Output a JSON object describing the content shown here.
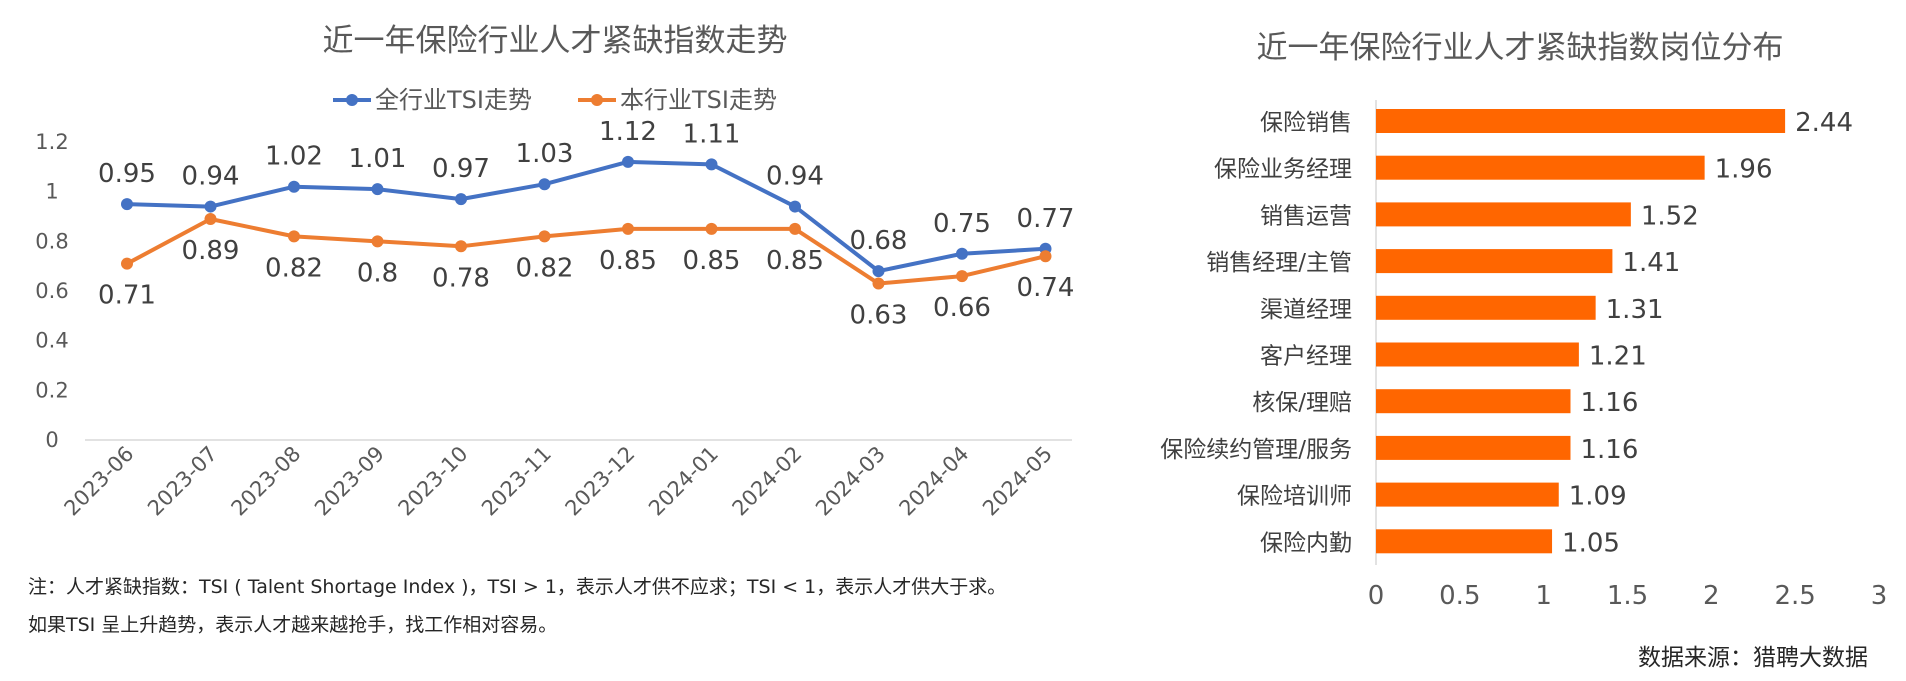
{
  "colors": {
    "blue": "#4472C4",
    "orange": "#ED7D31",
    "bar": "#FF6600",
    "axis": "#D9D9D9",
    "text": "#595959"
  },
  "chart_data": [
    {
      "type": "line",
      "title": "近一年保险行业人才紧缺指数走势",
      "categories": [
        "2023-06",
        "2023-07",
        "2023-08",
        "2023-09",
        "2023-10",
        "2023-11",
        "2023-12",
        "2024-01",
        "2024-02",
        "2024-03",
        "2024-04",
        "2024-05"
      ],
      "series": [
        {
          "name": "全行业TSI走势",
          "color": "#4472C4",
          "values": [
            0.95,
            0.94,
            1.02,
            1.01,
            0.97,
            1.03,
            1.12,
            1.11,
            0.94,
            0.68,
            0.75,
            0.77
          ],
          "labels": [
            "0.95",
            "0.94",
            "1.02",
            "1.01",
            "0.97",
            "1.03",
            "1.12",
            "1.11",
            "0.94",
            "0.68",
            "0.75",
            "0.77"
          ]
        },
        {
          "name": "本行业TSI走势",
          "color": "#ED7D31",
          "values": [
            0.71,
            0.89,
            0.82,
            0.8,
            0.78,
            0.82,
            0.85,
            0.85,
            0.85,
            0.63,
            0.66,
            0.74
          ],
          "labels": [
            "0.71",
            "0.89",
            "0.82",
            "0.8",
            "0.78",
            "0.82",
            "0.85",
            "0.85",
            "0.85",
            "0.63",
            "0.66",
            "0.74"
          ]
        }
      ],
      "ylim": [
        0,
        1.2
      ],
      "yticks": [
        "0",
        "0.2",
        "0.4",
        "0.6",
        "0.8",
        "1",
        "1.2"
      ],
      "legend": "top",
      "grid": false
    },
    {
      "type": "bar",
      "orientation": "horizontal",
      "title": "近一年保险行业人才紧缺指数岗位分布",
      "categories": [
        "保险销售",
        "保险业务经理",
        "销售运营",
        "销售经理/主管",
        "渠道经理",
        "客户经理",
        "核保/理赔",
        "保险续约管理/服务",
        "保险培训师",
        "保险内勤"
      ],
      "values": [
        2.44,
        1.96,
        1.52,
        1.41,
        1.31,
        1.21,
        1.16,
        1.16,
        1.09,
        1.05
      ],
      "labels": [
        "2.44",
        "1.96",
        "1.52",
        "1.41",
        "1.31",
        "1.21",
        "1.16",
        "1.16",
        "1.09",
        "1.05"
      ],
      "xlim": [
        0,
        3
      ],
      "xticks": [
        "0",
        "0.5",
        "1",
        "1.5",
        "2",
        "2.5",
        "3"
      ],
      "grid": false
    }
  ],
  "notes": {
    "line1": "注：人才紧缺指数：TSI ( Talent Shortage Index )，TSI > 1，表示人才供不应求；TSI < 1，表示人才供大于求。",
    "line2": "如果TSI 呈上升趋势，表示人才越来越抢手，找工作相对容易。"
  },
  "source": "数据来源：猎聘大数据"
}
